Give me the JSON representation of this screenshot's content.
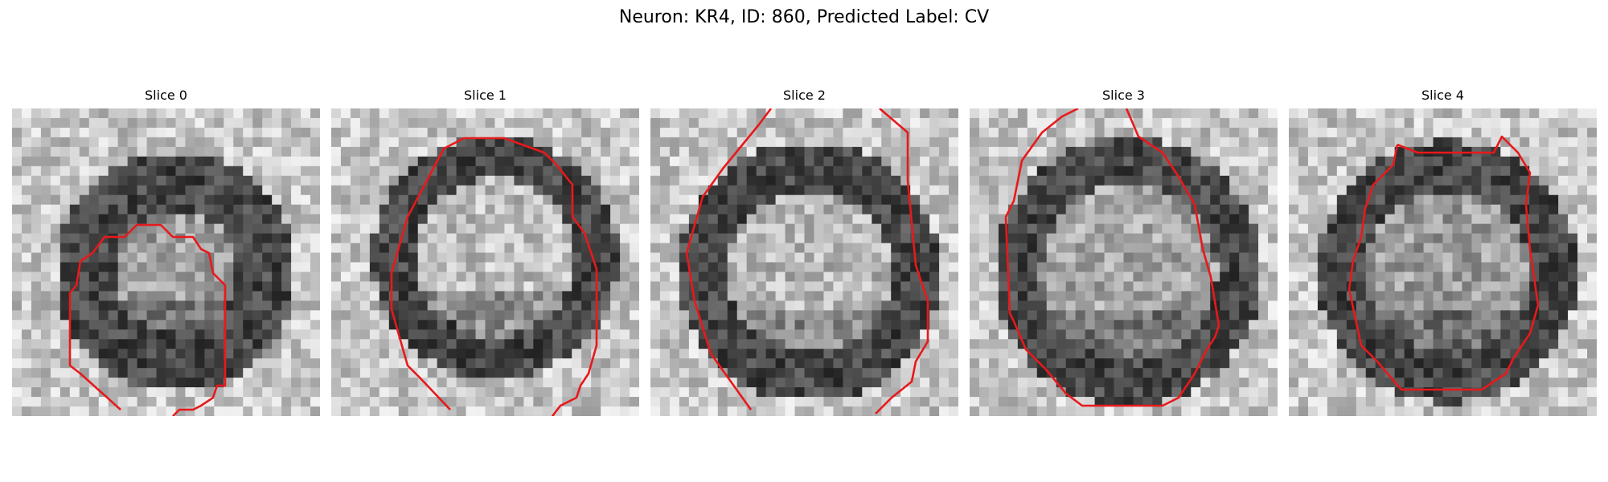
{
  "figure": {
    "title": "Neuron: KR4, ID: 860, Predicted Label: CV"
  },
  "panels": [
    {
      "title": "Slice 0",
      "image": "grayscale-microscopy-slice",
      "contour_color": "#e8191b"
    },
    {
      "title": "Slice 1",
      "image": "grayscale-microscopy-slice",
      "contour_color": "#e8191b"
    },
    {
      "title": "Slice 2",
      "image": "grayscale-microscopy-slice",
      "contour_color": "#e8191b"
    },
    {
      "title": "Slice 3",
      "image": "grayscale-microscopy-slice",
      "contour_color": "#e8191b"
    },
    {
      "title": "Slice 4",
      "image": "grayscale-microscopy-slice",
      "contour_color": "#e8191b"
    }
  ]
}
